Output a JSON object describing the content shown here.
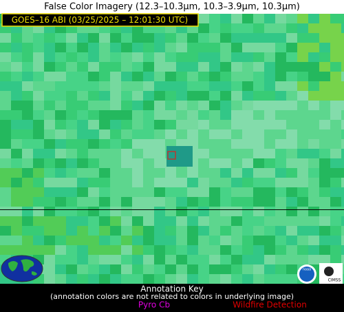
{
  "header": {
    "title": "False Color Imagery (12.3–10.3µm, 10.3–3.9µm, 10.3µm)"
  },
  "image": {
    "label": "GOES–16 ABI (03/25/2025 – 12:01:30 UTC)"
  },
  "annotation_key": {
    "title": "Annotation Key",
    "note": "(annotation colors are not related to colors in underlying image)",
    "pyro_cb": "Pyro Cb",
    "wildfire_detection": "Wildfire Detection"
  },
  "logos": {
    "noaa": "noaa",
    "cimss": "CIMSS"
  }
}
